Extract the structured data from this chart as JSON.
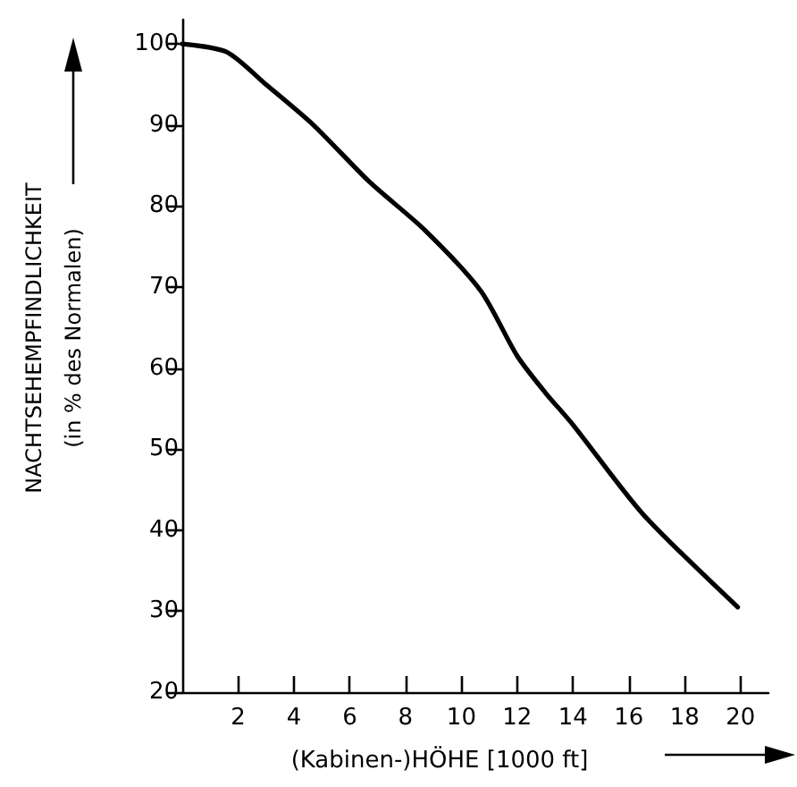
{
  "chart_data": {
    "type": "line",
    "xlabel": "(Kabinen-)HÖHE [1000 ft]",
    "ylabel": "NACHTSEHEMPFINDLICHKEIT\n(in % des Normalen)",
    "x": [
      0,
      1.6,
      3,
      4.7,
      6.7,
      8.7,
      10.7,
      12,
      13,
      14,
      16.5,
      19.9
    ],
    "series": [
      {
        "color": "#000000",
        "values": [
          100,
          99,
          95,
          90,
          83,
          77,
          69.5,
          61.5,
          57,
          53,
          42,
          30.5
        ]
      }
    ],
    "xlim": [
      0,
      21
    ],
    "xticks": [
      2,
      4,
      6,
      8,
      10,
      12,
      14,
      16,
      18,
      20
    ],
    "ylim": [
      20,
      103
    ],
    "yticks": [
      20,
      30,
      40,
      50,
      60,
      70,
      80,
      90,
      100
    ],
    "grid": false,
    "marker": "none",
    "line_style": "solid"
  }
}
